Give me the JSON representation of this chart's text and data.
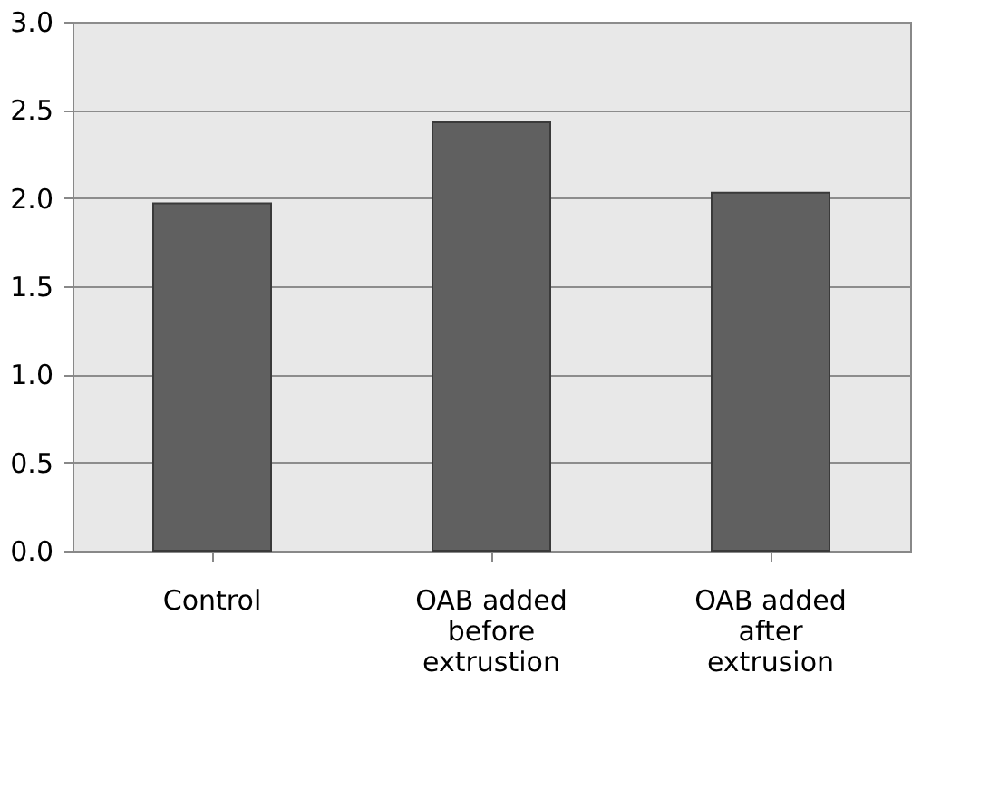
{
  "chart_data": {
    "type": "bar",
    "categories": [
      "Control",
      "OAB added before extrustion",
      "OAB added after extrusion"
    ],
    "values": [
      1.97,
      2.43,
      2.03
    ],
    "color": "#606060",
    "ylim": [
      0,
      3
    ],
    "yticks": [
      {
        "value": 0,
        "label": "0.0"
      },
      {
        "value": 0.5,
        "label": "0.5"
      },
      {
        "value": 1,
        "label": "1.0"
      },
      {
        "value": 1.5,
        "label": "1.5"
      },
      {
        "value": 2,
        "label": "2.0"
      },
      {
        "value": 2.5,
        "label": "2.5"
      },
      {
        "value": 3,
        "label": "3.0"
      }
    ],
    "grid": "y"
  }
}
